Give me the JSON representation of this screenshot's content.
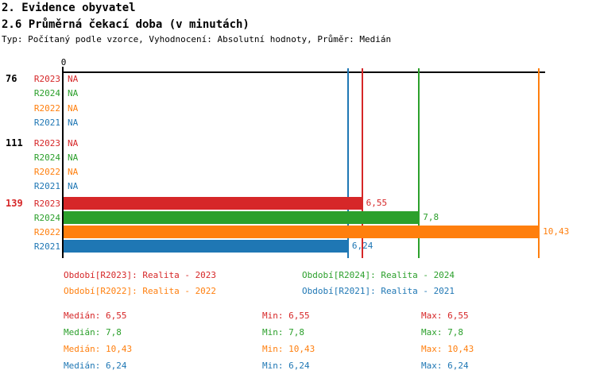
{
  "page": {
    "title": "2. Evidence obyvatel",
    "subtitle": "2.6 Průměrná čekací doba (v minutách)",
    "meta": "Typ: Počítaný podle vzorce, Vyhodnocení: Absolutní hodnoty, Průměr: Medián"
  },
  "colors": {
    "R2023": "#d62728",
    "R2024": "#2ca02c",
    "R2022": "#ff7f0e",
    "R2021": "#1f77b4",
    "axis": "#000000",
    "group_label_default": "#000000",
    "group_label_active": "#d62728"
  },
  "chart_data": {
    "type": "bar",
    "orientation": "horizontal",
    "x_axis": {
      "origin_tick_label": "0",
      "xlim": [
        0,
        10.55
      ],
      "grid": false
    },
    "series_order": [
      "R2023",
      "R2024",
      "R2022",
      "R2021"
    ],
    "groups": [
      {
        "label": "76",
        "rows": [
          {
            "series": "R2023",
            "value": null,
            "display": "NA"
          },
          {
            "series": "R2024",
            "value": null,
            "display": "NA"
          },
          {
            "series": "R2022",
            "value": null,
            "display": "NA"
          },
          {
            "series": "R2021",
            "value": null,
            "display": "NA"
          }
        ]
      },
      {
        "label": "111",
        "rows": [
          {
            "series": "R2023",
            "value": null,
            "display": "NA"
          },
          {
            "series": "R2024",
            "value": null,
            "display": "NA"
          },
          {
            "series": "R2022",
            "value": null,
            "display": "NA"
          },
          {
            "series": "R2021",
            "value": null,
            "display": "NA"
          }
        ]
      },
      {
        "label": "139",
        "rows": [
          {
            "series": "R2023",
            "value": 6.55,
            "display": "6,55"
          },
          {
            "series": "R2024",
            "value": 7.8,
            "display": "7,8"
          },
          {
            "series": "R2022",
            "value": 10.43,
            "display": "10,43"
          },
          {
            "series": "R2021",
            "value": 6.24,
            "display": "6,24"
          }
        ]
      }
    ],
    "reference_lines": [
      {
        "series": "R2023",
        "value": 6.55
      },
      {
        "series": "R2024",
        "value": 7.8
      },
      {
        "series": "R2022",
        "value": 10.43
      },
      {
        "series": "R2021",
        "value": 6.24
      }
    ]
  },
  "legend": {
    "left": [
      {
        "series": "R2023",
        "label": "Období[R2023]: Realita - 2023"
      },
      {
        "series": "R2022",
        "label": "Období[R2022]: Realita - 2022"
      }
    ],
    "right": [
      {
        "series": "R2024",
        "label": "Období[R2024]: Realita - 2024"
      },
      {
        "series": "R2021",
        "label": "Období[R2021]: Realita - 2021"
      }
    ]
  },
  "stats": [
    {
      "series": "R2023",
      "median": "Medián: 6,55",
      "min": "Min: 6,55",
      "max": "Max: 6,55"
    },
    {
      "series": "R2024",
      "median": "Medián: 7,8",
      "min": "Min: 7,8",
      "max": "Max: 7,8"
    },
    {
      "series": "R2022",
      "median": "Medián: 10,43",
      "min": "Min: 10,43",
      "max": "Max: 10,43"
    },
    {
      "series": "R2021",
      "median": "Medián: 6,24",
      "min": "Min: 6,24",
      "max": "Max: 6,24"
    }
  ]
}
